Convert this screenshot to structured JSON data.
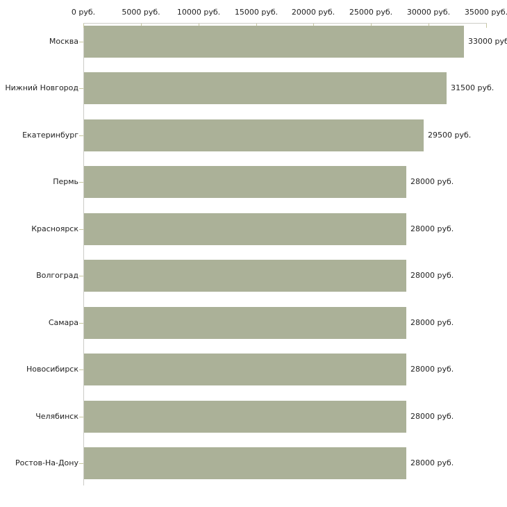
{
  "chart_data": {
    "type": "bar",
    "orientation": "horizontal",
    "title": "",
    "categories": [
      "Москва",
      "Нижний Новгород",
      "Екатеринбург",
      "Пермь",
      "Красноярск",
      "Волгоград",
      "Самара",
      "Новосибирск",
      "Челябинск",
      "Ростов-На-Дону"
    ],
    "values": [
      33000,
      31500,
      29500,
      28000,
      28000,
      28000,
      28000,
      28000,
      28000,
      28000
    ],
    "value_labels": [
      "33000 руб",
      "31500 руб.",
      "29500 руб.",
      "28000 руб.",
      "28000 руб.",
      "28000 руб.",
      "28000 руб.",
      "28000 руб.",
      "28000 руб.",
      "28000 руб."
    ],
    "x_axis": {
      "position": "top",
      "xlim": [
        0,
        35000
      ],
      "tick_values": [
        0,
        5000,
        10000,
        15000,
        20000,
        25000,
        30000,
        35000
      ],
      "tick_labels": [
        "0 руб.",
        "5000 руб.",
        "10000 руб.",
        "15000 руб.",
        "20000 руб.",
        "25000 руб.",
        "30000 руб.",
        "35000 руб."
      ]
    },
    "unit": "руб.",
    "grid": false,
    "legend": false,
    "colors": {
      "bar": "#abb198",
      "axis_line": "#ccccc6",
      "tick": "#c6c69e",
      "text": "#1f1f1f",
      "background": "#ffffff"
    }
  }
}
